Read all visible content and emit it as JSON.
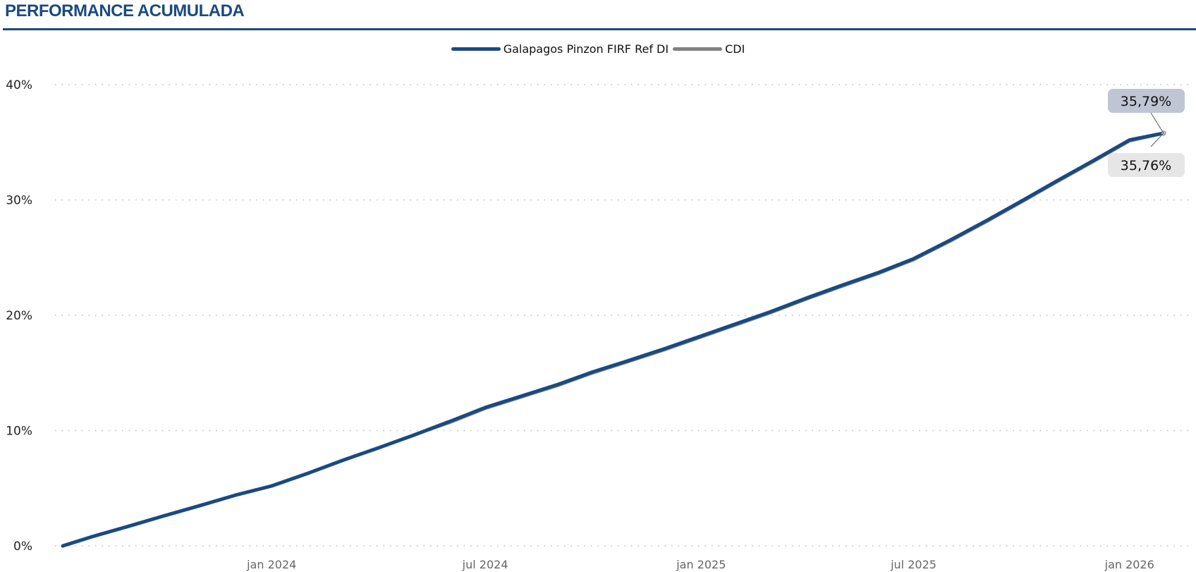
{
  "header": {
    "title": "PERFORMANCE ACUMULADA"
  },
  "chart_data": {
    "type": "line",
    "title": "PERFORMANCE ACUMULADA",
    "xlabel": "",
    "ylabel": "",
    "ylim": [
      0,
      40
    ],
    "yticks": [
      0,
      10,
      20,
      30,
      40
    ],
    "ytick_labels": [
      "0%",
      "10%",
      "20%",
      "30%",
      "40%"
    ],
    "xlim": [
      "2023-07-07",
      "2026-01-30"
    ],
    "xticks": [
      "2024-01-01",
      "2024-07-01",
      "2025-01-01",
      "2025-07-01",
      "2026-01-01"
    ],
    "xtick_labels": [
      "jan 2024",
      "jul 2024",
      "jan 2025",
      "jul 2025",
      "jan 2026"
    ],
    "grid": "horizontal-dotted",
    "legend_position": "top-center",
    "x": [
      "2023-07-07",
      "2023-08-01",
      "2023-09-01",
      "2023-10-01",
      "2023-11-01",
      "2023-12-01",
      "2024-01-01",
      "2024-02-01",
      "2024-03-01",
      "2024-04-01",
      "2024-05-01",
      "2024-06-01",
      "2024-07-01",
      "2024-08-01",
      "2024-09-01",
      "2024-10-01",
      "2024-11-01",
      "2024-12-01",
      "2025-01-01",
      "2025-02-01",
      "2025-03-01",
      "2025-04-01",
      "2025-05-01",
      "2025-06-01",
      "2025-07-01",
      "2025-08-01",
      "2025-09-01",
      "2025-10-01",
      "2025-11-01",
      "2025-12-01",
      "2026-01-01",
      "2026-01-30"
    ],
    "series": [
      {
        "name": "Galapagos Pinzon FIRF Ref DI",
        "color": "#1a4a80",
        "values": [
          0,
          0.8,
          1.7,
          2.6,
          3.5,
          4.4,
          5.2,
          6.3,
          7.4,
          8.5,
          9.6,
          10.8,
          12.0,
          13.0,
          14.0,
          15.1,
          16.1,
          17.1,
          18.2,
          19.3,
          20.3,
          21.5,
          22.6,
          23.7,
          24.9,
          26.5,
          28.2,
          29.9,
          31.7,
          33.4,
          35.2,
          35.79
        ]
      },
      {
        "name": "CDI",
        "color": "#808080",
        "values": [
          0,
          0.8,
          1.7,
          2.6,
          3.5,
          4.4,
          5.2,
          6.3,
          7.4,
          8.5,
          9.6,
          10.7,
          11.9,
          12.9,
          13.9,
          15.0,
          16.0,
          17.0,
          18.1,
          19.2,
          20.2,
          21.4,
          22.5,
          23.6,
          24.8,
          26.4,
          28.1,
          29.8,
          31.6,
          33.3,
          35.1,
          35.76
        ]
      }
    ],
    "annotations": [
      {
        "series": "Galapagos Pinzon FIRF Ref DI",
        "text": "35,79%",
        "bg": "#c0c5d4"
      },
      {
        "series": "CDI",
        "text": "35,76%",
        "bg": "#e6e6e6"
      }
    ]
  }
}
